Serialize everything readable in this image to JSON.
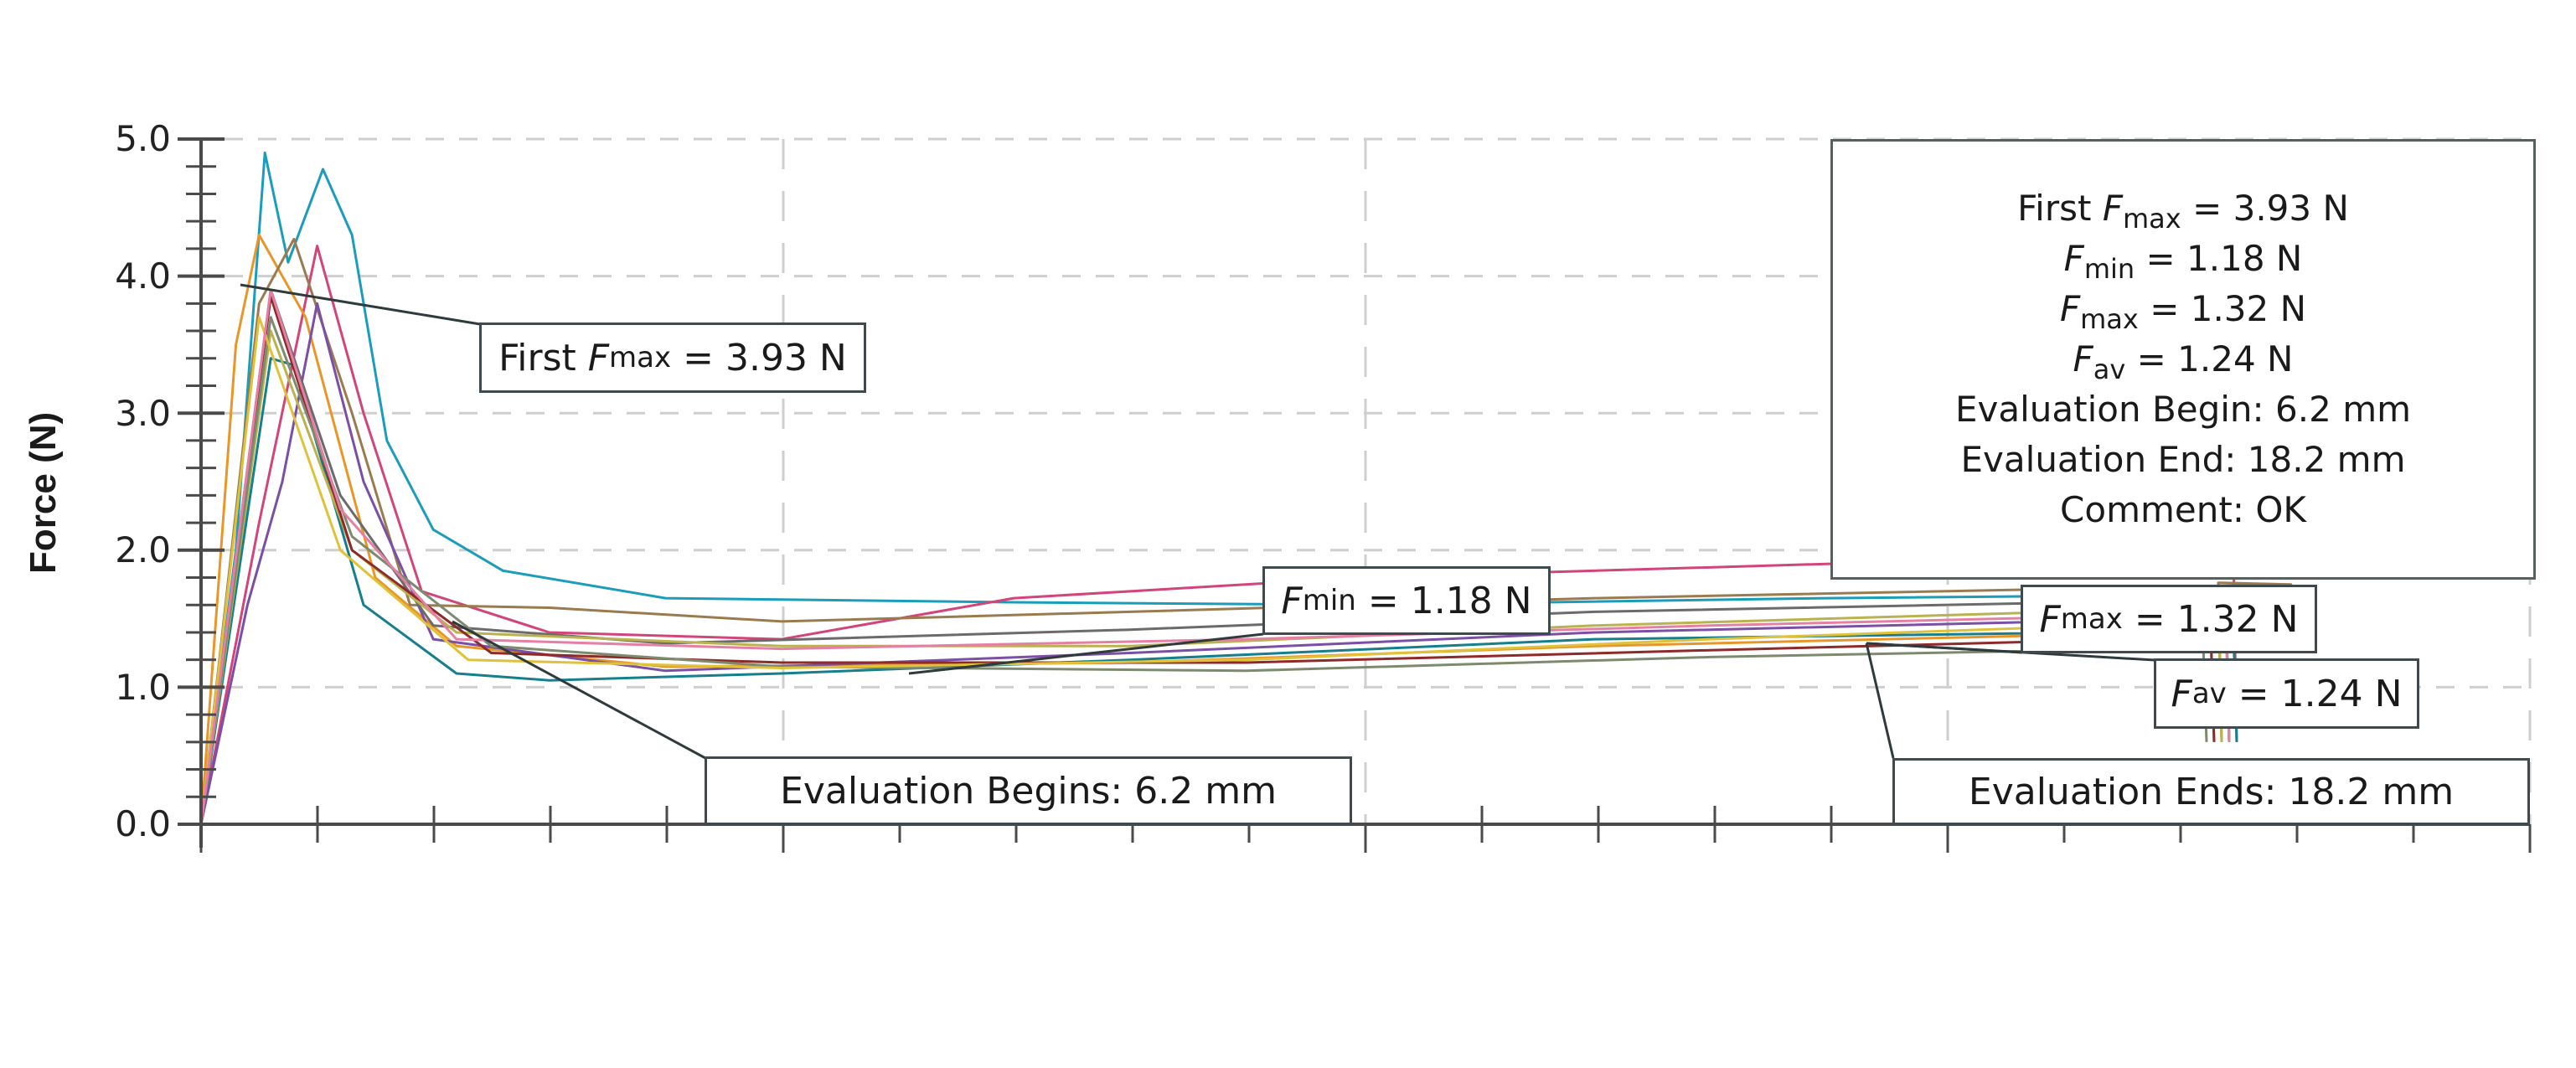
{
  "chart_data": {
    "type": "line",
    "title": "",
    "xlabel": "",
    "ylabel": "Force (N)",
    "ylim": [
      0.0,
      5.0
    ],
    "yticks": [
      "0.0",
      "1.0",
      "2.0",
      "3.0",
      "4.0",
      "5.0"
    ],
    "y_minor_step": 0.2,
    "xticks_labels_visible": false,
    "x_major_ticks": 5,
    "x_minor_per_major": 5,
    "grid": "dashed, major ticks only",
    "legend": null,
    "series_note": "approximately 30 overlaid force-displacement curves (multi-colored); sharp initial peak ~3.5–4.9 N followed by plateau ~1.1–2.0 N until drop near end of evaluation",
    "series": [
      {
        "name": "curve-cyan-high",
        "color": "#1b9dba",
        "points": [
          [
            0,
            0
          ],
          [
            0.3,
            2.0
          ],
          [
            0.55,
            4.9
          ],
          [
            0.75,
            4.1
          ],
          [
            1.05,
            4.78
          ],
          [
            1.3,
            4.3
          ],
          [
            1.6,
            2.8
          ],
          [
            2.0,
            2.15
          ],
          [
            2.6,
            1.85
          ],
          [
            4.0,
            1.65
          ],
          [
            7.0,
            1.62
          ],
          [
            10.0,
            1.6
          ],
          [
            14.0,
            1.65
          ],
          [
            18.0,
            1.68
          ]
        ]
      },
      {
        "name": "curve-magenta",
        "color": "#d1457a",
        "points": [
          [
            0,
            0
          ],
          [
            0.5,
            2.2
          ],
          [
            1.0,
            4.22
          ],
          [
            1.4,
            3.0
          ],
          [
            1.9,
            1.7
          ],
          [
            3.0,
            1.4
          ],
          [
            5.0,
            1.35
          ],
          [
            7.0,
            1.65
          ],
          [
            10.0,
            1.8
          ],
          [
            14.0,
            1.9
          ],
          [
            18.0,
            2.0
          ]
        ]
      },
      {
        "name": "curve-orange-peak",
        "color": "#e8962a",
        "points": [
          [
            0,
            0
          ],
          [
            0.3,
            3.5
          ],
          [
            0.5,
            4.3
          ],
          [
            0.9,
            3.7
          ],
          [
            1.5,
            1.8
          ],
          [
            2.2,
            1.3
          ],
          [
            4.0,
            1.15
          ],
          [
            8.0,
            1.18
          ],
          [
            12.0,
            1.3
          ],
          [
            18.0,
            1.42
          ]
        ]
      },
      {
        "name": "curve-brown",
        "color": "#9a7b4f",
        "points": [
          [
            0,
            0
          ],
          [
            0.5,
            3.8
          ],
          [
            0.8,
            4.27
          ],
          [
            1.3,
            3.0
          ],
          [
            1.8,
            1.6
          ],
          [
            3.0,
            1.58
          ],
          [
            5.0,
            1.48
          ],
          [
            8.0,
            1.55
          ],
          [
            12.0,
            1.65
          ],
          [
            18.0,
            1.75
          ]
        ]
      },
      {
        "name": "curve-teal-low",
        "color": "#167f8c",
        "points": [
          [
            0,
            0
          ],
          [
            0.6,
            3.4
          ],
          [
            0.8,
            3.35
          ],
          [
            1.4,
            1.6
          ],
          [
            2.2,
            1.1
          ],
          [
            3.0,
            1.05
          ],
          [
            5.0,
            1.1
          ],
          [
            8.0,
            1.2
          ],
          [
            12.0,
            1.35
          ],
          [
            18.0,
            1.42
          ]
        ]
      },
      {
        "name": "curve-purple",
        "color": "#7b4fa5",
        "points": [
          [
            0,
            0
          ],
          [
            0.4,
            1.6
          ],
          [
            0.7,
            2.5
          ],
          [
            1.0,
            3.8
          ],
          [
            1.4,
            2.5
          ],
          [
            2.0,
            1.35
          ],
          [
            4.0,
            1.12
          ],
          [
            8.0,
            1.25
          ],
          [
            12.0,
            1.4
          ],
          [
            18.0,
            1.52
          ]
        ]
      },
      {
        "name": "curve-grey",
        "color": "#6b6b6b",
        "points": [
          [
            0,
            0
          ],
          [
            0.6,
            3.9
          ],
          [
            1.2,
            2.4
          ],
          [
            2.0,
            1.45
          ],
          [
            4.0,
            1.32
          ],
          [
            8.0,
            1.42
          ],
          [
            12.0,
            1.55
          ],
          [
            18.0,
            1.65
          ]
        ]
      },
      {
        "name": "curve-olive",
        "color": "#b9b24f",
        "points": [
          [
            0,
            0
          ],
          [
            0.6,
            3.6
          ],
          [
            1.3,
            2.0
          ],
          [
            2.2,
            1.4
          ],
          [
            5.0,
            1.3
          ],
          [
            8.0,
            1.3
          ],
          [
            12.0,
            1.45
          ],
          [
            18.0,
            1.6
          ]
        ]
      },
      {
        "name": "curve-darkred",
        "color": "#8e2a2a",
        "points": [
          [
            0,
            0
          ],
          [
            0.6,
            3.85
          ],
          [
            1.3,
            2.0
          ],
          [
            2.5,
            1.25
          ],
          [
            5.0,
            1.18
          ],
          [
            9.0,
            1.18
          ],
          [
            13.0,
            1.27
          ],
          [
            18.0,
            1.38
          ]
        ]
      },
      {
        "name": "curve-sage",
        "color": "#7d8a6e",
        "points": [
          [
            0,
            0
          ],
          [
            0.6,
            3.7
          ],
          [
            1.3,
            2.1
          ],
          [
            2.5,
            1.3
          ],
          [
            5.0,
            1.15
          ],
          [
            9.0,
            1.12
          ],
          [
            13.0,
            1.22
          ],
          [
            18.0,
            1.3
          ]
        ]
      },
      {
        "name": "curve-yellow",
        "color": "#e0c23a",
        "points": [
          [
            0,
            0
          ],
          [
            0.5,
            3.7
          ],
          [
            1.2,
            2.0
          ],
          [
            2.3,
            1.2
          ],
          [
            5.0,
            1.14
          ],
          [
            9.0,
            1.2
          ],
          [
            13.0,
            1.35
          ],
          [
            18.0,
            1.5
          ]
        ]
      },
      {
        "name": "curve-pink",
        "color": "#e57fa5",
        "points": [
          [
            0,
            0
          ],
          [
            0.6,
            3.9
          ],
          [
            1.2,
            2.3
          ],
          [
            2.2,
            1.35
          ],
          [
            5.0,
            1.28
          ],
          [
            9.0,
            1.35
          ],
          [
            13.0,
            1.45
          ],
          [
            18.0,
            1.55
          ]
        ]
      }
    ]
  },
  "axes": {
    "y_label": "Force (N)",
    "y_ticks": [
      "5.0",
      "4.0",
      "3.0",
      "2.0",
      "1.0",
      "0.0"
    ]
  },
  "callouts": {
    "first_fmax": {
      "prefix": "First ",
      "symbol": "F",
      "sub": "max",
      "value": " = 3.93 N"
    },
    "fmin": {
      "symbol": "F",
      "sub": "min",
      "value": " = 1.18 N"
    },
    "fmax": {
      "symbol": "F",
      "sub": "max",
      "value": " = 1.32 N"
    },
    "fav": {
      "symbol": "F",
      "sub": "av",
      "value": " = 1.24 N"
    },
    "eval_begins": "Evaluation Begins: 6.2 mm",
    "eval_ends": "Evaluation Ends: 18.2 mm"
  },
  "results_box": {
    "first_fmax": {
      "prefix": "First ",
      "symbol": "F",
      "sub": "max",
      "value": " = 3.93 N"
    },
    "fmin": {
      "symbol": "F",
      "sub": "min",
      "value": " = 1.18 N"
    },
    "fmax": {
      "symbol": "F",
      "sub": "max",
      "value": " = 1.32 N"
    },
    "fav": {
      "symbol": "F",
      "sub": "av",
      "value": " = 1.24 N"
    },
    "eval_begin": "Evaluation Begin: 6.2 mm",
    "eval_end": "Evaluation End: 18.2 mm",
    "comment": "Comment: OK"
  },
  "colors": {
    "axis": "#4a4a4a",
    "grid": "#cfcfcf",
    "callout_border": "#3f4a4e",
    "leader": "#2f3a3d"
  }
}
